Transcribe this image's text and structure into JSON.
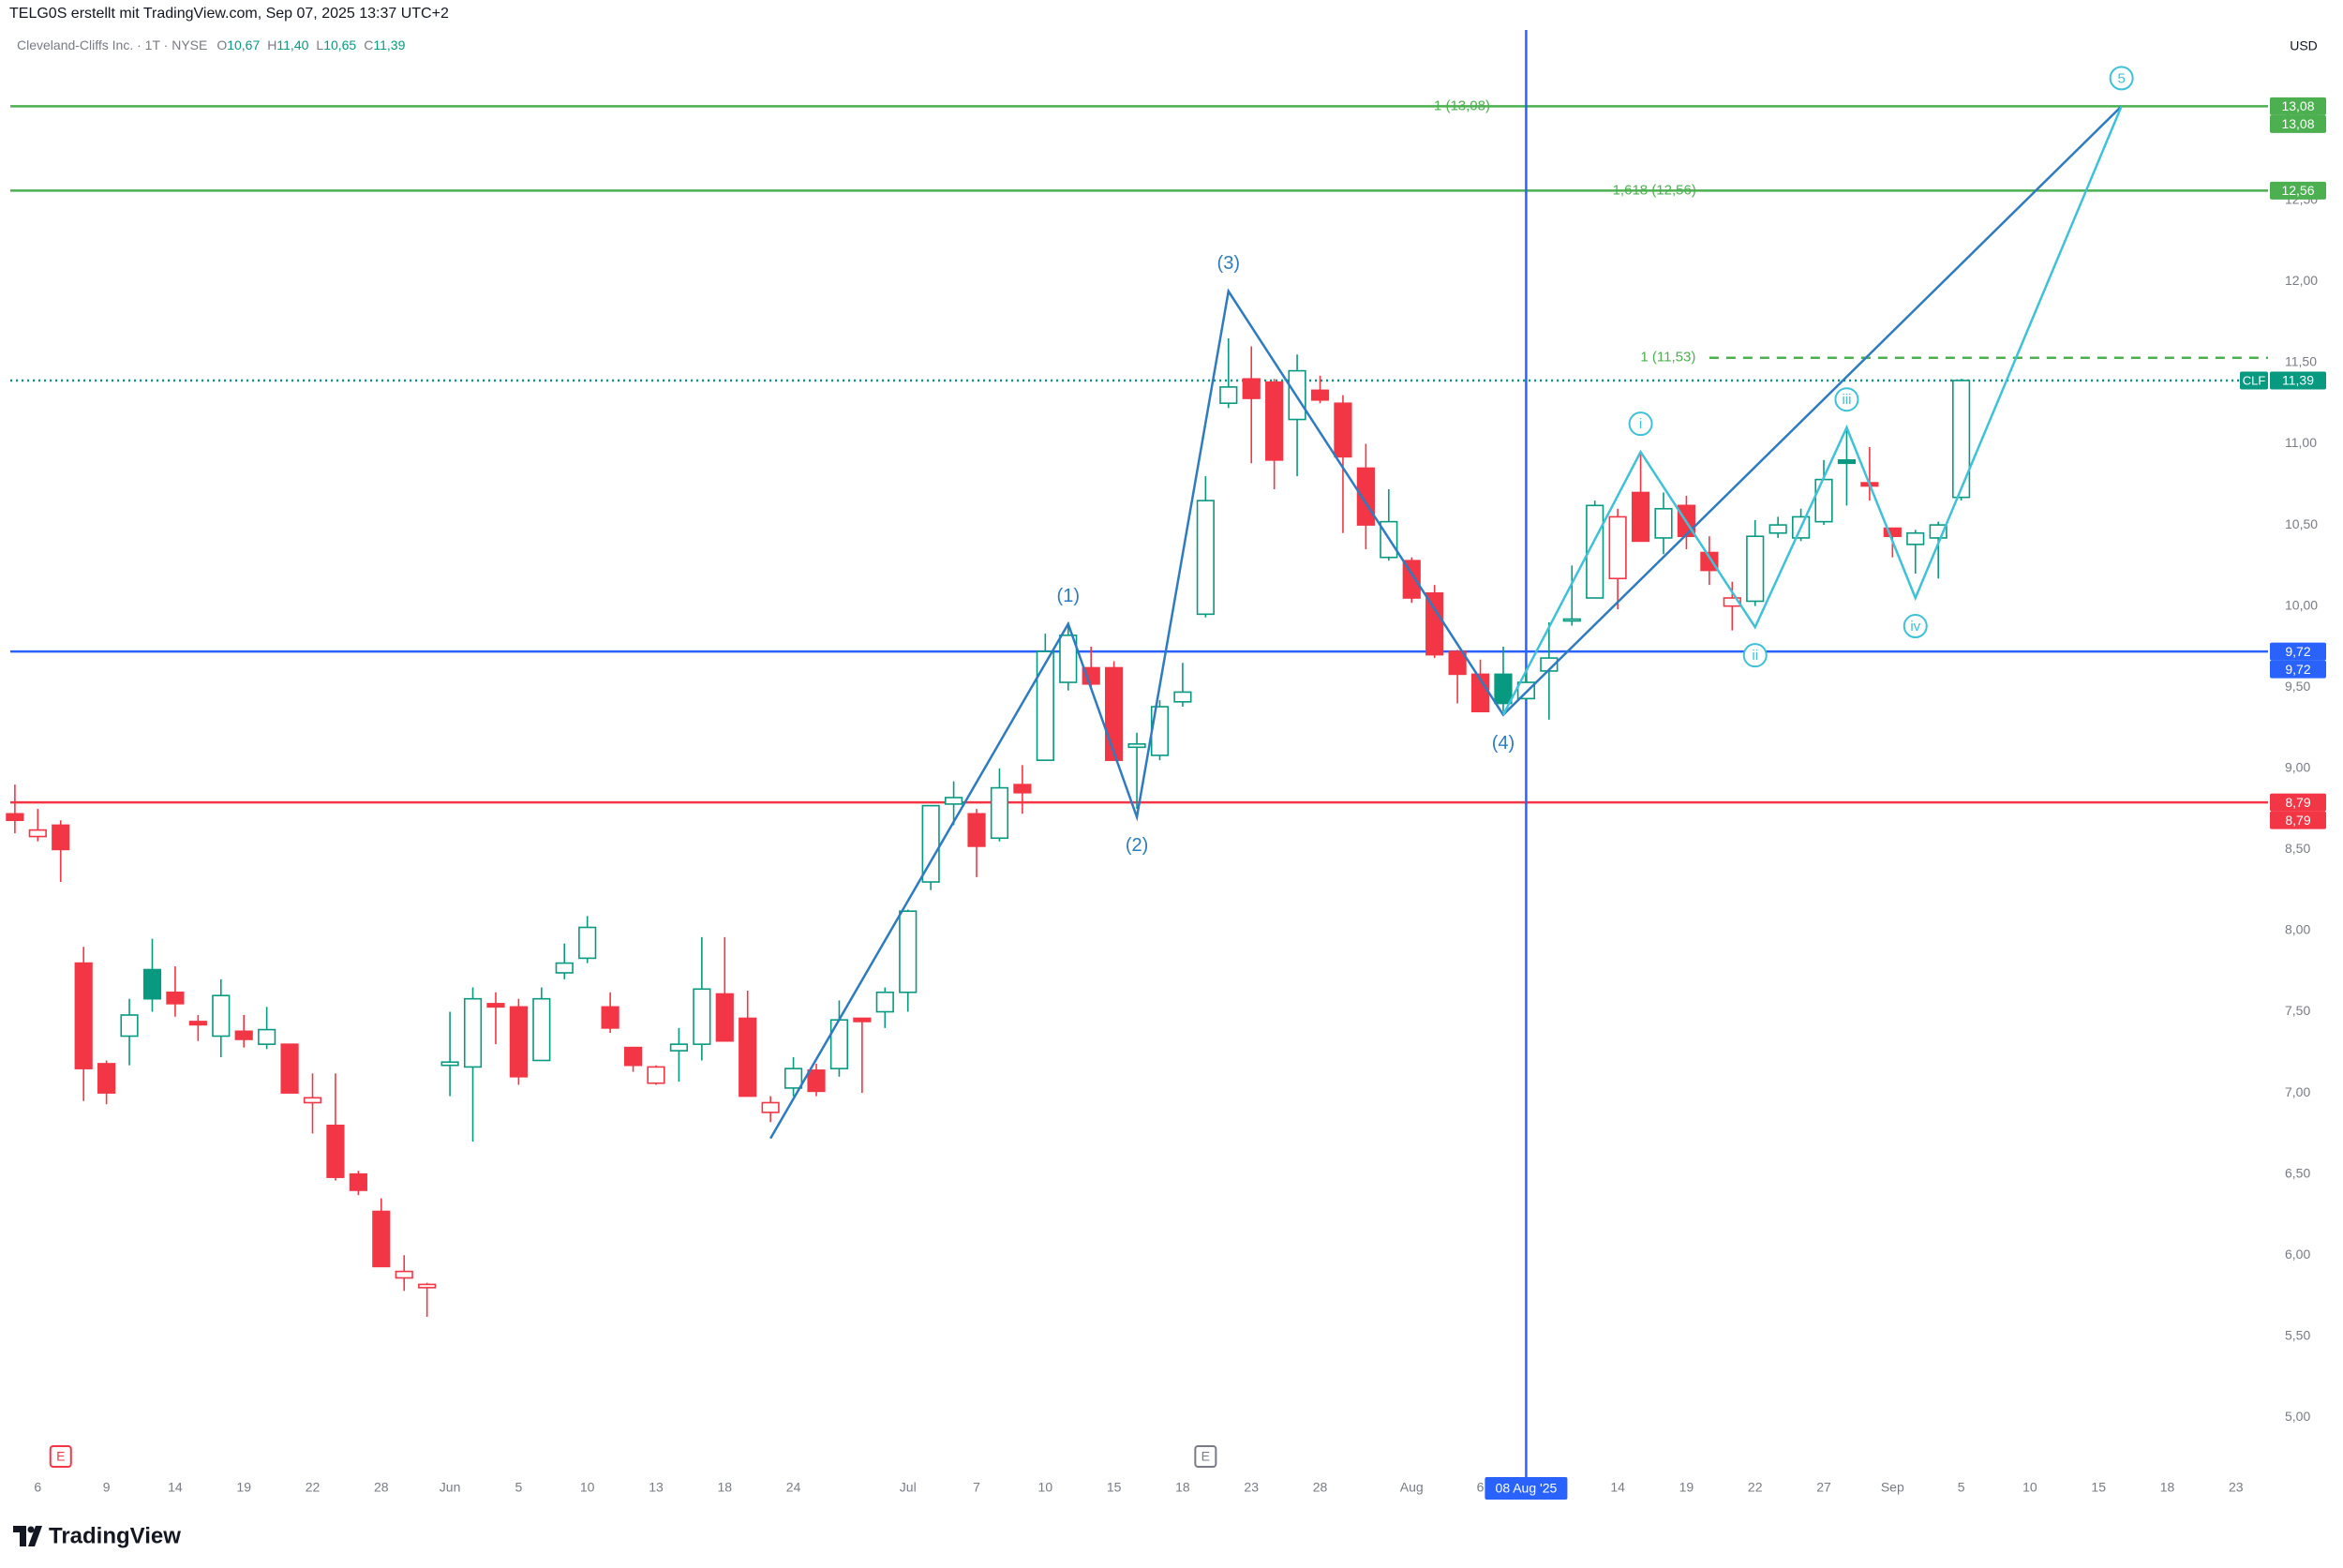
{
  "header": {
    "credit": "TELG0S erstellt mit TradingView.com, Sep 07, 2025 13:37 UTC+2"
  },
  "chart_data": {
    "type": "candlestick",
    "title": "Cleveland-Cliffs Inc. · 1T · NYSE",
    "ohlc_legend": [
      {
        "key": "O",
        "value": "10,67"
      },
      {
        "key": "H",
        "value": "11,40"
      },
      {
        "key": "L",
        "value": "10,65"
      },
      {
        "key": "C",
        "value": "11,39"
      }
    ],
    "currency": "USD",
    "ticker": "CLF",
    "open": [
      8.72,
      8.58,
      8.65,
      7.8,
      7.18,
      7.35,
      7.76,
      7.62,
      7.44,
      7.35,
      7.38,
      7.3,
      7.3,
      6.94,
      6.8,
      6.5,
      6.27,
      5.86,
      5.8,
      7.17,
      7.16,
      7.55,
      7.53,
      7.2,
      7.74,
      7.83,
      7.53,
      7.28,
      7.06,
      7.26,
      7.3,
      7.61,
      7.46,
      6.88,
      7.03,
      7.14,
      7.15,
      7.46,
      7.5,
      7.62,
      8.3,
      8.78,
      8.72,
      8.57,
      8.9,
      9.05,
      9.53,
      9.62,
      9.62,
      9.13,
      9.08,
      9.41,
      9.95,
      11.25,
      11.4,
      11.38,
      11.15,
      11.33,
      11.25,
      10.85,
      10.3,
      10.28,
      10.08,
      9.72,
      9.58,
      9.58,
      9.43,
      9.6,
      9.91,
      10.05,
      10.17,
      10.7,
      10.42,
      10.62,
      10.33,
      10.0,
      10.03,
      10.45,
      10.42,
      10.52,
      10.9,
      10.76,
      10.48,
      10.38,
      10.42,
      10.67
    ],
    "high": [
      8.9,
      8.75,
      8.68,
      7.9,
      7.2,
      7.58,
      7.95,
      7.78,
      7.48,
      7.7,
      7.48,
      7.53,
      7.3,
      7.12,
      7.12,
      6.52,
      6.35,
      6.0,
      5.83,
      7.5,
      7.65,
      7.62,
      7.58,
      7.65,
      7.92,
      8.09,
      7.62,
      7.28,
      7.17,
      7.4,
      7.96,
      7.96,
      7.63,
      6.98,
      7.22,
      7.18,
      7.57,
      7.46,
      7.65,
      8.13,
      8.77,
      8.92,
      8.75,
      9.0,
      9.02,
      9.83,
      9.9,
      9.75,
      9.66,
      9.22,
      9.42,
      9.65,
      10.8,
      11.65,
      11.6,
      11.4,
      11.55,
      11.42,
      11.3,
      11.0,
      10.72,
      10.3,
      10.13,
      9.73,
      9.67,
      9.75,
      9.62,
      9.9,
      10.25,
      10.65,
      10.6,
      10.95,
      10.7,
      10.68,
      10.43,
      10.15,
      10.53,
      10.55,
      10.6,
      10.9,
      11.08,
      10.98,
      10.48,
      10.47,
      10.52,
      11.4
    ],
    "low": [
      8.6,
      8.55,
      8.3,
      6.95,
      6.93,
      7.17,
      7.5,
      7.47,
      7.32,
      7.22,
      7.28,
      7.27,
      7.0,
      6.75,
      6.46,
      6.37,
      5.93,
      5.78,
      5.62,
      6.98,
      6.7,
      7.3,
      7.05,
      7.2,
      7.7,
      7.8,
      7.37,
      7.13,
      7.05,
      7.07,
      7.2,
      7.32,
      6.98,
      6.82,
      6.98,
      6.98,
      7.1,
      7.0,
      7.4,
      7.5,
      8.25,
      8.65,
      8.33,
      8.55,
      8.72,
      9.05,
      9.48,
      9.5,
      9.05,
      8.75,
      9.05,
      9.38,
      9.93,
      11.22,
      10.88,
      10.72,
      10.8,
      11.25,
      10.45,
      10.35,
      10.28,
      10.02,
      9.68,
      9.4,
      9.35,
      9.35,
      9.42,
      9.3,
      9.88,
      10.05,
      9.98,
      10.4,
      10.32,
      10.35,
      10.13,
      9.85,
      10.0,
      10.42,
      10.4,
      10.5,
      10.62,
      10.65,
      10.3,
      10.2,
      10.17,
      10.65
    ],
    "close": [
      8.68,
      8.62,
      8.5,
      7.15,
      7.0,
      7.48,
      7.58,
      7.55,
      7.42,
      7.6,
      7.33,
      7.39,
      7.0,
      6.97,
      6.48,
      6.4,
      5.93,
      5.9,
      5.82,
      7.19,
      7.58,
      7.53,
      7.1,
      7.58,
      7.8,
      8.02,
      7.4,
      7.17,
      7.16,
      7.3,
      7.64,
      7.32,
      6.98,
      6.94,
      7.15,
      7.01,
      7.45,
      7.44,
      7.62,
      8.12,
      8.77,
      8.82,
      8.52,
      8.88,
      8.85,
      9.72,
      9.82,
      9.52,
      9.05,
      9.15,
      9.38,
      9.47,
      10.65,
      11.35,
      11.28,
      10.9,
      11.45,
      11.27,
      10.92,
      10.5,
      10.52,
      10.05,
      9.7,
      9.58,
      9.35,
      9.4,
      9.53,
      9.68,
      9.92,
      10.62,
      10.55,
      10.4,
      10.6,
      10.43,
      10.22,
      10.05,
      10.43,
      10.5,
      10.55,
      10.78,
      10.88,
      10.74,
      10.43,
      10.45,
      10.5,
      11.39
    ],
    "up_color": "#089981",
    "down_color": "#f23645",
    "xlim": [
      -0.2,
      98.4
    ],
    "xticks": [
      {
        "value": 1,
        "label": "6"
      },
      {
        "value": 4,
        "label": "9"
      },
      {
        "value": 7,
        "label": "14"
      },
      {
        "value": 10,
        "label": "19"
      },
      {
        "value": 13,
        "label": "22"
      },
      {
        "value": 16,
        "label": "28"
      },
      {
        "value": 19,
        "label": "Jun"
      },
      {
        "value": 22,
        "label": "5"
      },
      {
        "value": 25,
        "label": "10"
      },
      {
        "value": 28,
        "label": "13"
      },
      {
        "value": 31,
        "label": "18"
      },
      {
        "value": 34,
        "label": "24"
      },
      {
        "value": 39,
        "label": "Jul"
      },
      {
        "value": 42,
        "label": "7"
      },
      {
        "value": 45,
        "label": "10"
      },
      {
        "value": 48,
        "label": "15"
      },
      {
        "value": 51,
        "label": "18"
      },
      {
        "value": 54,
        "label": "23"
      },
      {
        "value": 57,
        "label": "28"
      },
      {
        "value": 61,
        "label": "Aug"
      },
      {
        "value": 64,
        "label": "6"
      },
      {
        "value": 70,
        "label": "14"
      },
      {
        "value": 73,
        "label": "19"
      },
      {
        "value": 76,
        "label": "22"
      },
      {
        "value": 79,
        "label": "27"
      },
      {
        "value": 82,
        "label": "Sep"
      },
      {
        "value": 85,
        "label": "5"
      },
      {
        "value": 88,
        "label": "10"
      },
      {
        "value": 91,
        "label": "15"
      },
      {
        "value": 94,
        "label": "18"
      },
      {
        "value": 97,
        "label": "23"
      }
    ],
    "ylim": [
      4.65,
      13.55
    ],
    "yticks": [
      {
        "value": 5,
        "label": "5,00"
      },
      {
        "value": 5.5,
        "label": "5,50"
      },
      {
        "value": 6,
        "label": "6,00"
      },
      {
        "value": 6.5,
        "label": "6,50"
      },
      {
        "value": 7,
        "label": "7,00"
      },
      {
        "value": 7.5,
        "label": "7,50"
      },
      {
        "value": 8,
        "label": "8,00"
      },
      {
        "value": 8.5,
        "label": "8,50"
      },
      {
        "value": 9,
        "label": "9,00"
      },
      {
        "value": 9.5,
        "label": "9,50"
      },
      {
        "value": 10,
        "label": "10,00"
      },
      {
        "value": 10.5,
        "label": "10,50"
      },
      {
        "value": 11,
        "label": "11,00"
      },
      {
        "value": 11.5,
        "label": "11,50"
      },
      {
        "value": 12,
        "label": "12,00"
      },
      {
        "value": 12.5,
        "label": "12,50"
      },
      {
        "value": 13,
        "label": "13,00"
      }
    ],
    "grid": false,
    "hlines": [
      {
        "value": 13.08,
        "label": "13,08",
        "color": "#4caf50",
        "style": "solid",
        "tags": 2,
        "note": "1 (13,08)",
        "note_x": 63.2
      },
      {
        "value": 12.56,
        "label": "12,56",
        "color": "#4caf50",
        "style": "solid",
        "tags": 1,
        "note": "1,618 (12,56)",
        "note_x": 71.6
      },
      {
        "value": 11.53,
        "color": "#4caf50",
        "style": "dashed",
        "from": 74,
        "note": "1 (11,53)",
        "note_x": 72.2
      },
      {
        "value": 11.39,
        "label": "11,39",
        "color": "#089981",
        "style": "dotted",
        "tags": 1,
        "ticker_tag": true
      },
      {
        "value": 9.72,
        "label": "9,72",
        "color": "#2962ff",
        "style": "solid",
        "tags": 2
      },
      {
        "value": 8.79,
        "label": "8,79",
        "color": "#f23645",
        "style": "solid",
        "tags": 2
      }
    ],
    "crosshair": {
      "x": 66,
      "label": "08 Aug '25",
      "color": "#2962ff"
    },
    "waves": [
      {
        "color": "#2e7bbf",
        "circled": false,
        "x": [
          33,
          46,
          49,
          53,
          65,
          92
        ],
        "y": [
          6.72,
          9.89,
          8.7,
          11.94,
          9.33,
          13.08
        ],
        "labels": [
          null,
          "(1)",
          "(2)",
          "(3)",
          "(4)",
          null
        ]
      },
      {
        "color": "#3fc1d6",
        "circled": true,
        "x": [
          65,
          71,
          76,
          80,
          83,
          92
        ],
        "y": [
          9.33,
          10.95,
          9.87,
          11.1,
          10.05,
          13.08
        ],
        "labels": [
          null,
          "i",
          "ii",
          "iii",
          "iv",
          "5"
        ]
      }
    ],
    "earnings": [
      {
        "x": 2,
        "label": "E",
        "color": "#f23645"
      },
      {
        "x": 52,
        "label": "E",
        "color": "#787b86"
      }
    ]
  },
  "footer": {
    "logo": "TradingView"
  }
}
